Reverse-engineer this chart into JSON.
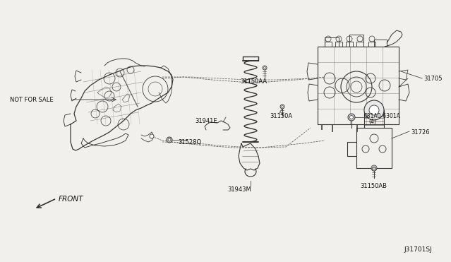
{
  "bg_color": "#f2f0ed",
  "diagram_id": "J31701SJ",
  "line_color": "#333333",
  "label_color": "#111111",
  "lw": 0.8,
  "fs": 6.5
}
